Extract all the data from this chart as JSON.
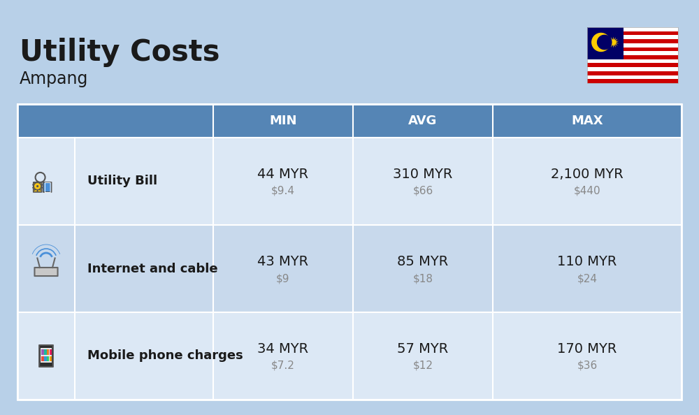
{
  "title": "Utility Costs",
  "subtitle": "Ampang",
  "background_color": "#b8d0e8",
  "header_bg_color": "#5585b5",
  "header_text_color": "#ffffff",
  "row_bg_color_odd": "#dce8f5",
  "row_bg_color_even": "#c8d9ec",
  "table_border_color": "#ffffff",
  "col_headers": [
    "MIN",
    "AVG",
    "MAX"
  ],
  "rows": [
    {
      "label": "Utility Bill",
      "min_myr": "44 MYR",
      "min_usd": "$9.4",
      "avg_myr": "310 MYR",
      "avg_usd": "$66",
      "max_myr": "2,100 MYR",
      "max_usd": "$440"
    },
    {
      "label": "Internet and cable",
      "min_myr": "43 MYR",
      "min_usd": "$9",
      "avg_myr": "85 MYR",
      "avg_usd": "$18",
      "max_myr": "110 MYR",
      "max_usd": "$24"
    },
    {
      "label": "Mobile phone charges",
      "min_myr": "34 MYR",
      "min_usd": "$7.2",
      "avg_myr": "57 MYR",
      "avg_usd": "$12",
      "max_myr": "170 MYR",
      "max_usd": "$36"
    }
  ],
  "title_fontsize": 30,
  "subtitle_fontsize": 17,
  "header_fontsize": 13,
  "label_fontsize": 13,
  "value_fontsize": 14,
  "usd_fontsize": 11,
  "usd_color": "#888888",
  "text_color": "#1a1a1a"
}
